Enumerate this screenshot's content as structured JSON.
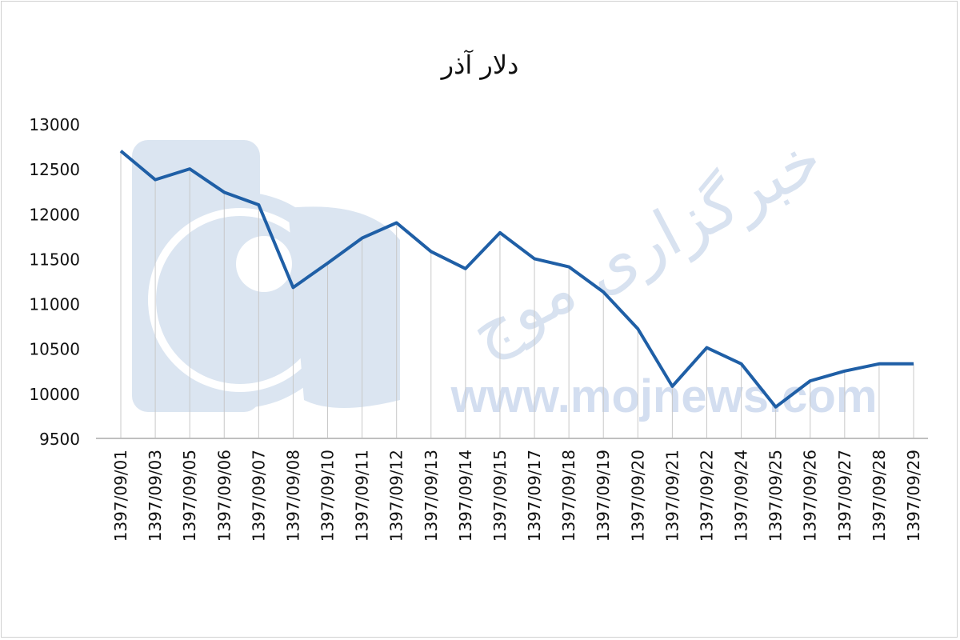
{
  "chart_data": {
    "type": "line",
    "title": "دلار آذر",
    "xlabel": "",
    "ylabel": "",
    "ylim": [
      9500,
      13000
    ],
    "yticks": [
      "13000",
      "12500",
      "12000",
      "11500",
      "11000",
      "10500",
      "10000",
      "9500"
    ],
    "grid": "vertical lines at each category",
    "legend": "none",
    "line_color": "#1f5fa6",
    "categories": [
      "1397/09/01",
      "1397/09/03",
      "1397/09/05",
      "1397/09/06",
      "1397/09/07",
      "1397/09/08",
      "1397/09/10",
      "1397/09/11",
      "1397/09/12",
      "1397/09/13",
      "1397/09/14",
      "1397/09/15",
      "1397/09/17",
      "1397/09/18",
      "1397/09/19",
      "1397/09/20",
      "1397/09/21",
      "1397/09/22",
      "1397/09/24",
      "1397/09/25",
      "1397/09/26",
      "1397/09/27",
      "1397/09/28",
      "1397/09/29"
    ],
    "values": [
      12700,
      12380,
      12500,
      12240,
      12100,
      11180,
      11450,
      11730,
      11900,
      11580,
      11390,
      11790,
      11500,
      11410,
      11130,
      10720,
      10080,
      10510,
      10330,
      9850,
      10140,
      10250,
      10330,
      10330
    ]
  },
  "watermark": {
    "url": "www.mojnews.com",
    "text": "خبرگزاری موج",
    "color": "#c9d7ea"
  }
}
